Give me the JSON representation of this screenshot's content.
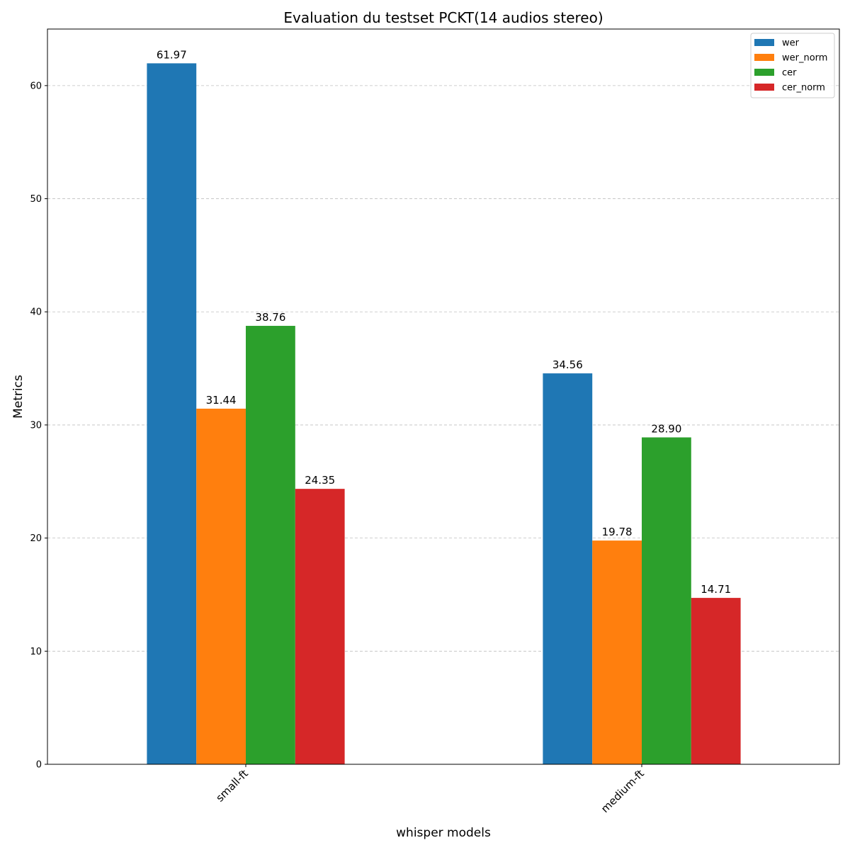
{
  "chart_data": {
    "type": "bar",
    "title": "Evaluation du testset PCKT(14 audios stereo)",
    "xlabel": "whisper models",
    "ylabel": "Metrics",
    "categories": [
      "small-ft",
      "medium-ft"
    ],
    "series": [
      {
        "name": "wer",
        "color": "#1f77b4",
        "values": [
          61.97,
          34.56
        ],
        "labels": [
          "61.97",
          "34.56"
        ]
      },
      {
        "name": "wer_norm",
        "color": "#ff7f0e",
        "values": [
          31.44,
          19.78
        ],
        "labels": [
          "31.44",
          "19.78"
        ]
      },
      {
        "name": "cer",
        "color": "#2ca02c",
        "values": [
          38.76,
          28.9
        ],
        "labels": [
          "38.76",
          "28.90"
        ]
      },
      {
        "name": "cer_norm",
        "color": "#d62728",
        "values": [
          24.35,
          14.71
        ],
        "labels": [
          "24.35",
          "14.71"
        ]
      }
    ],
    "ylim": [
      0,
      65
    ],
    "yticks": [
      "0",
      "10",
      "20",
      "30",
      "40",
      "50",
      "60"
    ],
    "grid": true,
    "legend": "top-right"
  }
}
